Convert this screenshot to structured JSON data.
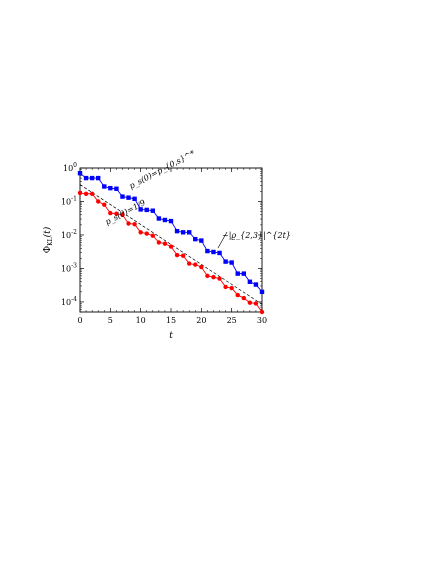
{
  "chart_data": {
    "type": "line",
    "x": [
      0,
      1,
      2,
      3,
      4,
      5,
      6,
      7,
      8,
      9,
      10,
      11,
      12,
      13,
      14,
      15,
      16,
      17,
      18,
      19,
      20,
      21,
      22,
      23,
      24,
      25,
      26,
      27,
      28,
      29,
      30
    ],
    "ylog": true,
    "xlim": [
      0,
      30
    ],
    "ylim": [
      5e-05,
      1
    ],
    "xticks": [
      "0",
      "5",
      "10",
      "15",
      "20",
      "25",
      "30"
    ],
    "yticks": [
      {
        "base": "10",
        "exp": "0"
      },
      {
        "base": "10",
        "exp": "-1"
      },
      {
        "base": "10",
        "exp": "-2"
      },
      {
        "base": "10",
        "exp": "-3"
      },
      {
        "base": "10",
        "exp": "-4"
      }
    ],
    "xlabel": "t",
    "ylabel": {
      "main": "Φ",
      "sub": "KL",
      "arg": "(t)"
    },
    "series": [
      {
        "label": "p_s(0)=p_{0,s}^*",
        "color": "#0000ff",
        "marker": "square",
        "values": [
          0.7,
          0.5,
          0.5,
          0.5,
          0.28,
          0.25,
          0.24,
          0.14,
          0.13,
          0.12,
          0.058,
          0.056,
          0.053,
          0.031,
          0.028,
          0.026,
          0.013,
          0.012,
          0.012,
          0.0075,
          0.0068,
          0.0033,
          0.0031,
          0.0029,
          0.0016,
          0.0015,
          0.0007,
          0.0007,
          0.0004,
          0.00033,
          0.0002
        ]
      },
      {
        "label": "p_s(0)=1/9",
        "color": "#ff0000",
        "marker": "circle",
        "values": [
          0.18,
          0.17,
          0.17,
          0.1,
          0.08,
          0.045,
          0.043,
          0.04,
          0.022,
          0.021,
          0.012,
          0.011,
          0.0095,
          0.006,
          0.0055,
          0.0045,
          0.0025,
          0.0024,
          0.0014,
          0.0013,
          0.0011,
          0.0006,
          0.00055,
          0.0005,
          0.00028,
          0.00026,
          0.00016,
          0.00013,
          9.5e-05,
          9e-05,
          5e-05
        ]
      }
    ],
    "reference_line": {
      "label": "~|ϱ_{2,3}|^{2t}",
      "y0": 0.32,
      "y30": 8.5e-05,
      "style": "dashed"
    },
    "annotations": [
      {
        "text": "p_s(0)=p_{0,s}^*",
        "series": 0
      },
      {
        "text": "p_s(0)=1/9",
        "series": 1
      },
      {
        "text": "~|ϱ_{2,3}|^{2t}",
        "series": "reference"
      }
    ]
  }
}
